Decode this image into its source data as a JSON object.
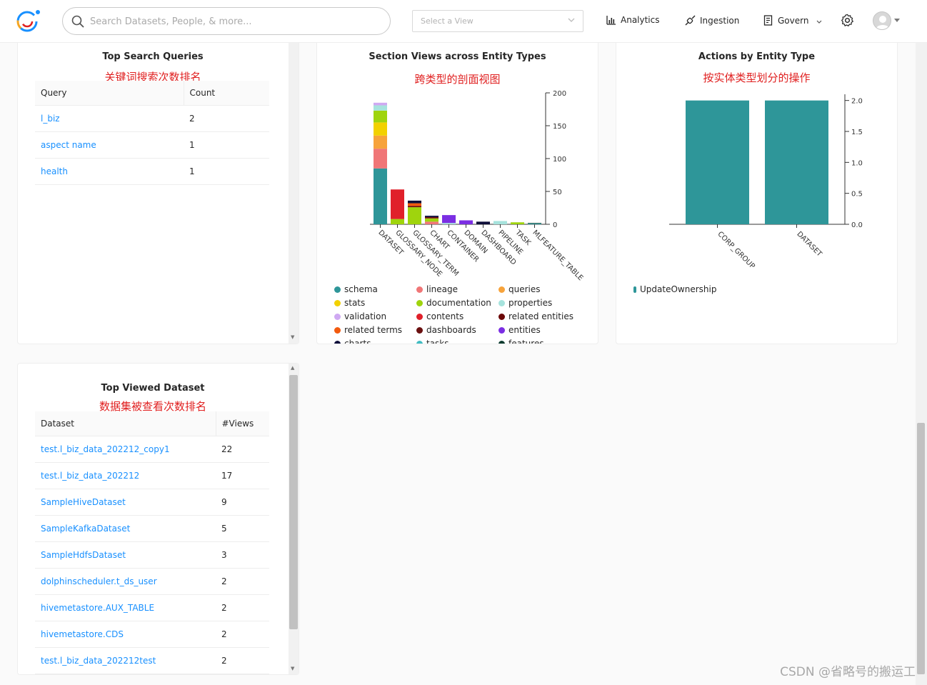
{
  "header": {
    "search_placeholder": "Search Datasets, People, & more...",
    "view_select_placeholder": "Select a View",
    "nav": {
      "analytics": "Analytics",
      "ingestion": "Ingestion",
      "govern": "Govern"
    }
  },
  "top_search_queries": {
    "title": "Top Search Queries",
    "subtitle": "关键词搜索次数排名",
    "columns": [
      "Query",
      "Count"
    ],
    "rows": [
      {
        "query": "l_biz",
        "count": "2"
      },
      {
        "query": "aspect name",
        "count": "1"
      },
      {
        "query": "health",
        "count": "1"
      }
    ]
  },
  "section_views": {
    "title": "Section Views across Entity Types",
    "subtitle": "跨类型的剖面视图",
    "legend": [
      {
        "name": "schema",
        "color": "#2e9699"
      },
      {
        "name": "lineage",
        "color": "#f07677"
      },
      {
        "name": "queries",
        "color": "#f7a33b"
      },
      {
        "name": "stats",
        "color": "#f2d100"
      },
      {
        "name": "documentation",
        "color": "#9fd40d"
      },
      {
        "name": "properties",
        "color": "#a6e3dd"
      },
      {
        "name": "validation",
        "color": "#cfa9f2"
      },
      {
        "name": "contents",
        "color": "#e0202a"
      },
      {
        "name": "related entities",
        "color": "#6b0707"
      },
      {
        "name": "related terms",
        "color": "#f25a0e"
      },
      {
        "name": "dashboards",
        "color": "#6a1010"
      },
      {
        "name": "entities",
        "color": "#7b2ee3"
      },
      {
        "name": "charts",
        "color": "#0e0e3a"
      },
      {
        "name": "tasks",
        "color": "#3fbcc2"
      },
      {
        "name": "features",
        "color": "#0a3a2e"
      }
    ]
  },
  "actions_by_entity": {
    "title": "Actions by Entity Type",
    "subtitle": "按实体类型划分的操作",
    "legend": [
      {
        "name": "UpdateOwnership",
        "color": "#2e9699"
      }
    ]
  },
  "top_viewed_dataset": {
    "title": "Top Viewed Dataset",
    "subtitle": "数据集被查看次数排名",
    "columns": [
      "Dataset",
      "#Views"
    ],
    "rows": [
      {
        "dataset": "test.l_biz_data_202212_copy1",
        "views": "22"
      },
      {
        "dataset": "test.l_biz_data_202212",
        "views": "17"
      },
      {
        "dataset": "SampleHiveDataset",
        "views": "9"
      },
      {
        "dataset": "SampleKafkaDataset",
        "views": "5"
      },
      {
        "dataset": "SampleHdfsDataset",
        "views": "3"
      },
      {
        "dataset": "dolphinscheduler.t_ds_user",
        "views": "2"
      },
      {
        "dataset": "hivemetastore.AUX_TABLE",
        "views": "2"
      },
      {
        "dataset": "hivemetastore.CDS",
        "views": "2"
      },
      {
        "dataset": "test.l_biz_data_202212test",
        "views": "2"
      }
    ]
  },
  "chart_data": [
    {
      "type": "bar",
      "stacked": true,
      "title": "Section Views across Entity Types",
      "categories": [
        "DATASET",
        "GLOSSARY_NODE",
        "GLOSSARY_TERM",
        "CHART",
        "CONTAINER",
        "DOMAIN",
        "DASHBOARD",
        "PIPELINE",
        "TASK",
        "MLFEATURE_TABLE"
      ],
      "ylim": [
        0,
        200
      ],
      "yticks": [
        0,
        50,
        100,
        150,
        200
      ],
      "y_axis_side": "right",
      "series": [
        {
          "name": "schema",
          "values": [
            85,
            0,
            0,
            0,
            0,
            0,
            0,
            0,
            0,
            0
          ]
        },
        {
          "name": "lineage",
          "values": [
            30,
            0,
            0,
            4,
            0,
            0,
            0,
            0,
            0,
            0
          ]
        },
        {
          "name": "queries",
          "values": [
            20,
            0,
            0,
            0,
            0,
            0,
            0,
            0,
            0,
            0
          ]
        },
        {
          "name": "stats",
          "values": [
            20,
            0,
            0,
            0,
            0,
            0,
            0,
            0,
            0,
            0
          ]
        },
        {
          "name": "documentation",
          "values": [
            18,
            8,
            26,
            5,
            0,
            0,
            0,
            0,
            3,
            0
          ]
        },
        {
          "name": "properties",
          "values": [
            8,
            0,
            0,
            0,
            2,
            0,
            0,
            5,
            0,
            0
          ]
        },
        {
          "name": "validation",
          "values": [
            4,
            0,
            0,
            0,
            0,
            0,
            0,
            0,
            0,
            0
          ]
        },
        {
          "name": "contents",
          "values": [
            0,
            45,
            0,
            0,
            0,
            0,
            0,
            0,
            0,
            0
          ]
        },
        {
          "name": "related entities",
          "values": [
            0,
            0,
            2,
            2,
            0,
            0,
            0,
            0,
            0,
            0
          ]
        },
        {
          "name": "related terms",
          "values": [
            0,
            0,
            4,
            0,
            0,
            0,
            0,
            0,
            0,
            0
          ]
        },
        {
          "name": "dashboards",
          "values": [
            0,
            0,
            0,
            0,
            0,
            0,
            0,
            0,
            0,
            0
          ]
        },
        {
          "name": "entities",
          "values": [
            0,
            0,
            0,
            0,
            12,
            6,
            0,
            0,
            0,
            0
          ]
        },
        {
          "name": "charts",
          "values": [
            0,
            0,
            4,
            2,
            0,
            0,
            4,
            0,
            0,
            0
          ]
        },
        {
          "name": "tasks",
          "values": [
            0,
            0,
            0,
            0,
            0,
            0,
            0,
            0,
            0,
            1
          ]
        },
        {
          "name": "features",
          "values": [
            0,
            0,
            0,
            0,
            0,
            0,
            0,
            0,
            0,
            1
          ]
        }
      ]
    },
    {
      "type": "bar",
      "title": "Actions by Entity Type",
      "categories": [
        "CORP_GROUP",
        "DATASET"
      ],
      "series": [
        {
          "name": "UpdateOwnership",
          "values": [
            2,
            2
          ]
        }
      ],
      "ylim": [
        0,
        2.1
      ],
      "yticks": [
        "0.0",
        "0.5",
        "1.0",
        "1.5",
        "2.0"
      ],
      "y_axis_side": "right"
    }
  ],
  "watermark": "CSDN @省略号的搬运工"
}
